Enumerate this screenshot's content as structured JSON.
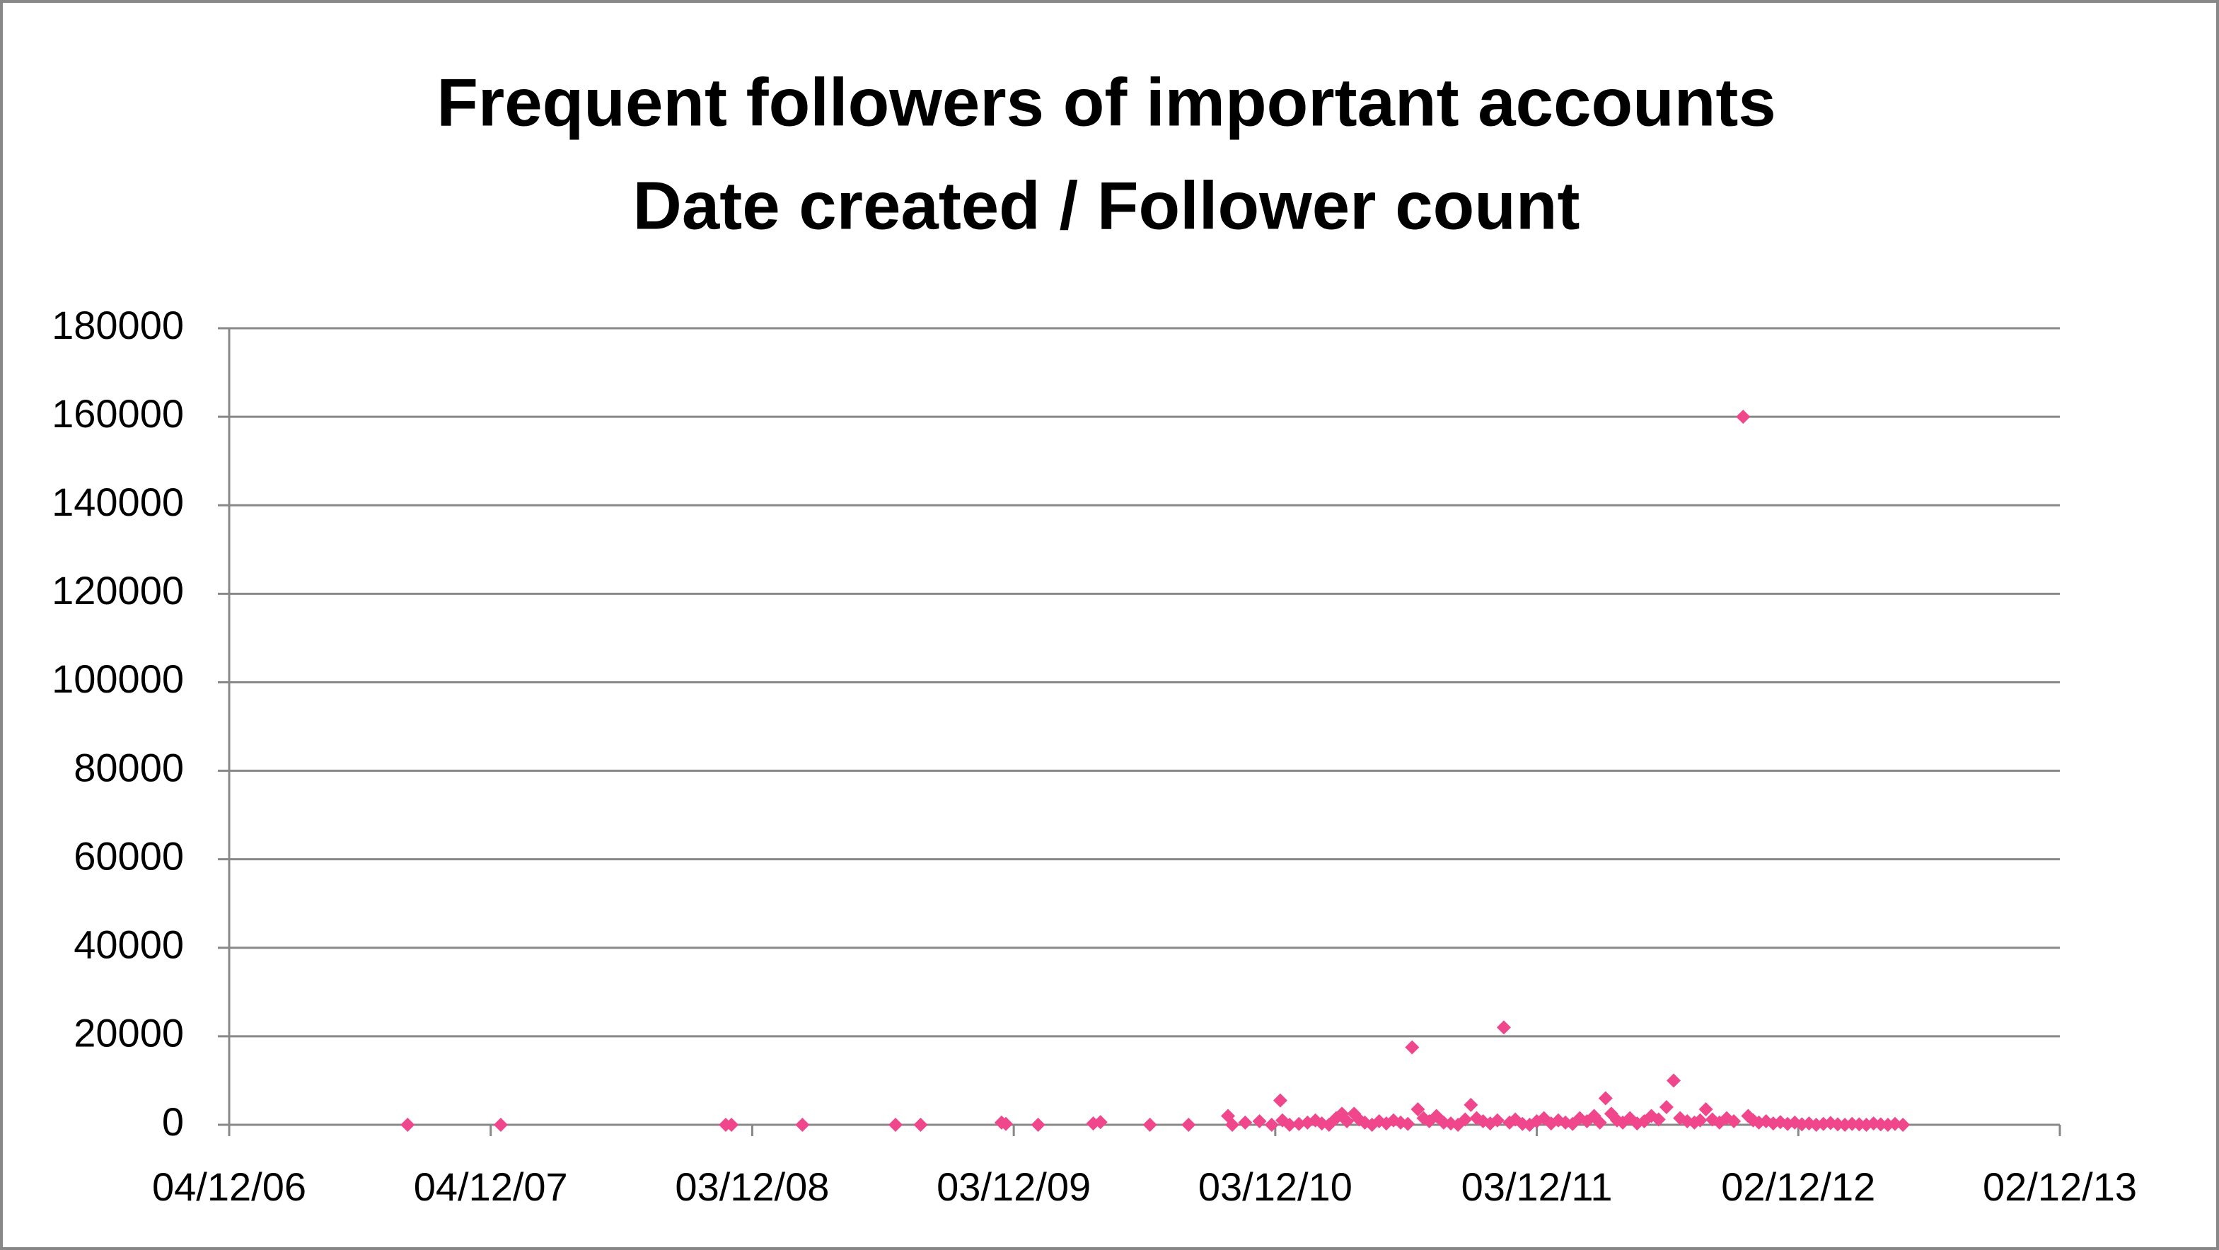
{
  "chart_data": {
    "type": "scatter",
    "title": "Frequent followers of important accounts",
    "subtitle": "Date created / Follower count",
    "color": "#f0468c",
    "grid": true,
    "x": [
      39304,
      39434,
      39748,
      39756,
      39855,
      39985,
      40020,
      40133,
      40139,
      40184,
      40261,
      40271,
      40340,
      40394,
      40449,
      40455,
      40473,
      40493,
      40510,
      40522,
      40525,
      40535,
      40548,
      40560,
      40571,
      40580,
      40590,
      40600,
      40608,
      40615,
      40625,
      40632,
      40640,
      40650,
      40660,
      40670,
      40680,
      40690,
      40700,
      40706,
      40714,
      40722,
      40730,
      40740,
      40750,
      40760,
      40770,
      40780,
      40788,
      40796,
      40805,
      40815,
      40825,
      40834,
      40842,
      40850,
      40860,
      40870,
      40880,
      40890,
      40900,
      40910,
      40920,
      40930,
      40940,
      40950,
      40960,
      40968,
      40976,
      40984,
      40992,
      41000,
      41010,
      41020,
      41030,
      41040,
      41050,
      41061,
      41071,
      41080,
      41090,
      41100,
      41108,
      41116,
      41125,
      41135,
      41145,
      41155,
      41168,
      41175,
      41182,
      41190,
      41200,
      41210,
      41220,
      41230,
      41240,
      41250,
      41260,
      41270,
      41280,
      41290,
      41300,
      41310,
      41320,
      41330,
      41340,
      41350,
      41360,
      41370,
      41380,
      41391
    ],
    "values": [
      0,
      0,
      0,
      0,
      0,
      0,
      0,
      500,
      200,
      0,
      300,
      600,
      0,
      0,
      2000,
      0,
      500,
      800,
      0,
      5500,
      1000,
      0,
      200,
      500,
      1000,
      300,
      0,
      1500,
      2500,
      800,
      2500,
      1200,
      500,
      0,
      800,
      300,
      1000,
      500,
      200,
      17500,
      3500,
      1500,
      800,
      2000,
      500,
      300,
      0,
      1200,
      4500,
      1500,
      800,
      300,
      1000,
      22000,
      500,
      1200,
      200,
      0,
      800,
      1500,
      300,
      1000,
      500,
      200,
      1500,
      800,
      2000,
      500,
      6000,
      2500,
      1000,
      500,
      1500,
      300,
      800,
      2000,
      1200,
      4000,
      10000,
      1500,
      800,
      500,
      1000,
      3500,
      1200,
      500,
      1500,
      800,
      160000,
      2000,
      1000,
      500,
      800,
      300,
      600,
      200,
      500,
      100,
      300,
      0,
      200,
      400,
      100,
      0,
      200,
      100,
      0,
      300,
      100,
      0,
      200,
      0
    ],
    "xlim": [
      39055,
      41610
    ],
    "xticks": [
      {
        "value": 39055,
        "label": "04/12/06"
      },
      {
        "value": 39420,
        "label": "04/12/07"
      },
      {
        "value": 39785,
        "label": "03/12/08"
      },
      {
        "value": 40150,
        "label": "03/12/09"
      },
      {
        "value": 40515,
        "label": "03/12/10"
      },
      {
        "value": 40880,
        "label": "03/12/11"
      },
      {
        "value": 41245,
        "label": "02/12/12"
      },
      {
        "value": 41610,
        "label": "02/12/13"
      }
    ],
    "ylim": [
      0,
      180000
    ],
    "yticks": [
      0,
      20000,
      40000,
      60000,
      80000,
      100000,
      120000,
      140000,
      160000,
      180000
    ]
  }
}
